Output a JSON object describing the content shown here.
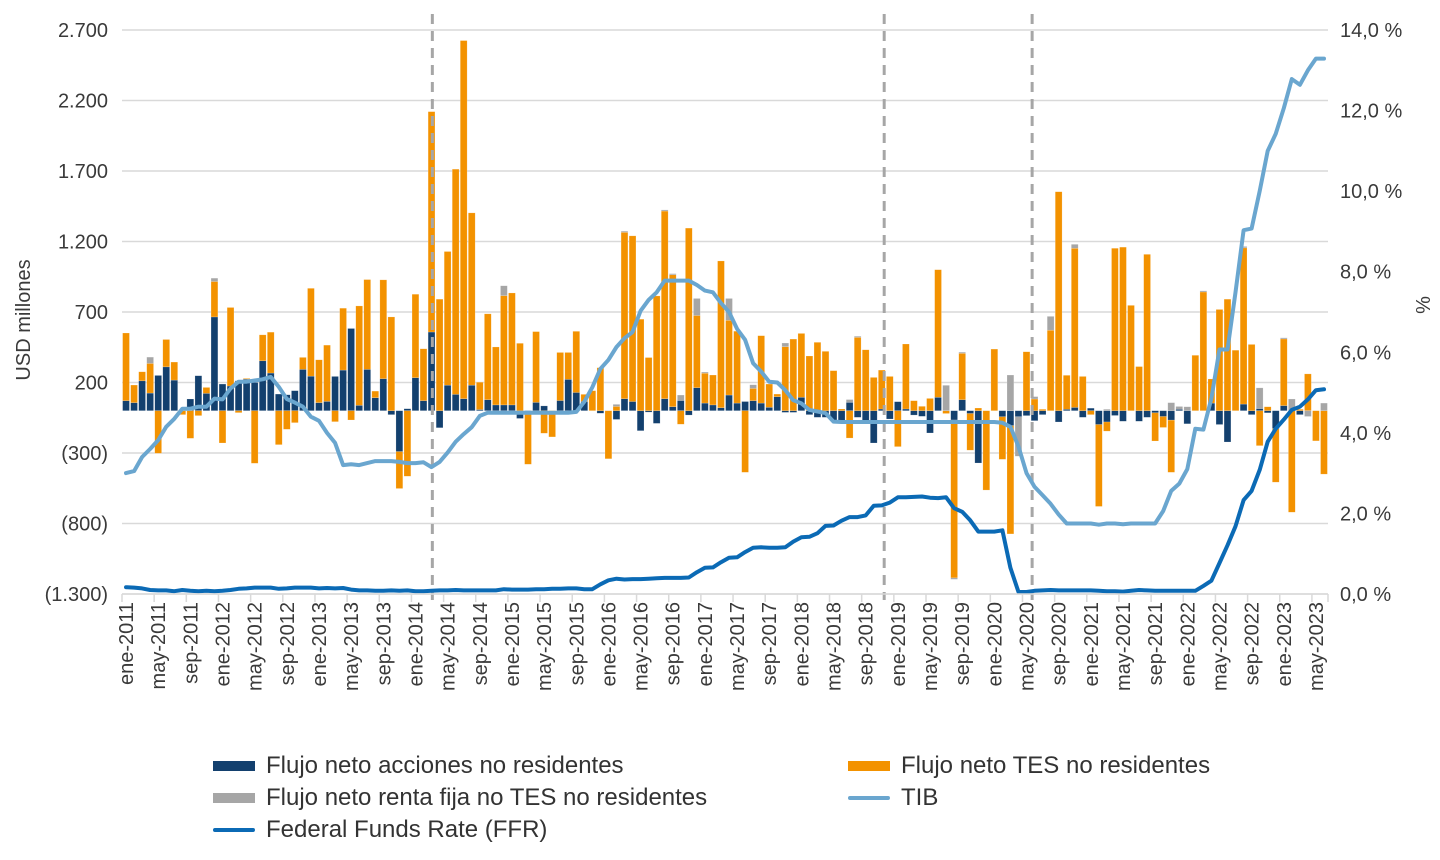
{
  "chart_data": {
    "type": "bar",
    "subtype": "stacked bar + line (dual axis)",
    "ylabel": "USD millones",
    "y2label": "%",
    "ylim": [
      -1300,
      2700
    ],
    "y2lim": [
      0,
      14
    ],
    "y_ticks": [
      2700,
      2200,
      1700,
      1200,
      700,
      200,
      -300,
      -800,
      -1300
    ],
    "y_tick_labels": [
      "2.700",
      "2.200",
      "1.700",
      "1.200",
      "700",
      "200",
      "(300)",
      "(800)",
      "(1.300)"
    ],
    "y2_ticks": [
      14,
      12,
      10,
      8,
      6,
      4,
      2,
      0
    ],
    "y2_tick_labels": [
      "14,0 %",
      "12,0 %",
      "10,0 %",
      "8,0 %",
      "6,0 %",
      "4,0 %",
      "2,0 %",
      "0,0 %"
    ],
    "grid": true,
    "x_first_month": "ene-2011",
    "x_tick_every_months": 4,
    "x_tick_labels": [
      "ene-2011",
      "may-2011",
      "sep-2011",
      "ene-2012",
      "may-2012",
      "sep-2012",
      "ene-2013",
      "may-2013",
      "sep-2013",
      "ene-2014",
      "may-2014",
      "sep-2014",
      "ene-2015",
      "may-2015",
      "sep-2015",
      "ene-2016",
      "may-2016",
      "sep-2016",
      "ene-2017",
      "may-2017",
      "sep-2017",
      "ene-2018",
      "may-2018",
      "sep-2018",
      "ene-2019",
      "may-2019",
      "sep-2019",
      "ene-2020",
      "may-2020",
      "sep-2020",
      "ene-2021",
      "may-2021",
      "sep-2021",
      "ene-2022",
      "may-2022",
      "sep-2022",
      "ene-2023",
      "may-2023"
    ],
    "vlines_month_index": [
      38.6,
      94.8,
      113.2
    ],
    "legend_position": "bottom",
    "series": [
      {
        "name": "Flujo neto acciones no residentes",
        "kind": "bar",
        "axis": "left",
        "color": "#13406e",
        "values": [
          71,
          57,
          212,
          125,
          250,
          311,
          217,
          0,
          83,
          248,
          123,
          665,
          189,
          175,
          212,
          224,
          200,
          354,
          267,
          118,
          113,
          142,
          293,
          245,
          57,
          66,
          243,
          288,
          583,
          38,
          293,
          92,
          227,
          -28,
          -290,
          14,
          234,
          71,
          558,
          -121,
          181,
          116,
          85,
          181,
          8,
          78,
          41,
          41,
          41,
          -55,
          -10,
          59,
          34,
          0,
          72,
          222,
          129,
          65,
          0,
          -18,
          0,
          -62,
          85,
          65,
          -142,
          -10,
          -90,
          85,
          28,
          72,
          -31,
          163,
          54,
          41,
          21,
          111,
          54,
          65,
          71,
          54,
          24,
          99,
          -12,
          -12,
          95,
          -28,
          -47,
          -47,
          -71,
          -71,
          59,
          -47,
          -71,
          -229,
          12,
          -59,
          64,
          12,
          -31,
          -40,
          -158,
          95,
          0,
          -66,
          78,
          -20,
          -371,
          0,
          0,
          -43,
          -106,
          -43,
          -35,
          -71,
          -28,
          0,
          -80,
          10,
          23,
          -47,
          18,
          -98,
          -80,
          -34,
          -75,
          0,
          -75,
          -47,
          -15,
          -41,
          -67,
          10,
          -93,
          0,
          0,
          54,
          -98,
          -222,
          0,
          47,
          -28,
          15,
          -15,
          -127,
          36,
          0,
          -28,
          0,
          0,
          0
        ]
      },
      {
        "name": "Flujo neto TES no residentes",
        "kind": "bar",
        "axis": "left",
        "color": "#f39200",
        "values": [
          480,
          125,
          64,
          210,
          -302,
          194,
          128,
          -28,
          -196,
          -35,
          42,
          251,
          -229,
          557,
          -14,
          5,
          -373,
          184,
          290,
          -241,
          -132,
          -85,
          85,
          623,
          304,
          399,
          -78,
          439,
          -66,
          705,
          637,
          47,
          701,
          665,
          -262,
          -465,
          592,
          368,
          1563,
          791,
          948,
          1597,
          2540,
          1222,
          194,
          609,
          411,
          775,
          794,
          478,
          -370,
          502,
          -160,
          -186,
          341,
          191,
          434,
          51,
          142,
          305,
          -341,
          30,
          1180,
          1175,
          649,
          377,
          814,
          1331,
          936,
          -96,
          1295,
          512,
          212,
          212,
          1041,
          530,
          510,
          -437,
          87,
          478,
          165,
          19,
          454,
          508,
          453,
          388,
          485,
          421,
          284,
          12,
          -194,
          520,
          432,
          236,
          276,
          243,
          -255,
          461,
          71,
          31,
          87,
          905,
          -20,
          -1120,
          329,
          -260,
          19,
          -563,
          437,
          -302,
          -768,
          0,
          418,
          83,
          10,
          571,
          1553,
          241,
          1129,
          243,
          -28,
          -581,
          -65,
          1152,
          1160,
          747,
          313,
          1109,
          -200,
          -78,
          -370,
          0,
          0,
          393,
          842,
          171,
          718,
          791,
          429,
          1108,
          470,
          -248,
          28,
          -380,
          473,
          -720,
          10,
          261,
          -214,
          -450
        ]
      },
      {
        "name": "Flujo neto renta fija no TES no residentes",
        "kind": "bar",
        "axis": "left",
        "color": "#a6a6a6",
        "values": [
          0,
          0,
          0,
          45,
          0,
          0,
          0,
          0,
          0,
          0,
          0,
          24,
          0,
          0,
          0,
          0,
          0,
          0,
          0,
          0,
          0,
          0,
          0,
          0,
          0,
          0,
          0,
          0,
          0,
          0,
          0,
          0,
          0,
          0,
          0,
          0,
          0,
          0,
          0,
          0,
          0,
          0,
          0,
          0,
          0,
          0,
          0,
          70,
          0,
          0,
          0,
          0,
          0,
          0,
          0,
          0,
          0,
          0,
          0,
          0,
          0,
          15,
          8,
          0,
          0,
          0,
          0,
          8,
          8,
          39,
          0,
          121,
          8,
          0,
          0,
          155,
          0,
          0,
          26,
          0,
          0,
          0,
          26,
          0,
          0,
          0,
          0,
          0,
          0,
          0,
          20,
          8,
          0,
          0,
          0,
          0,
          0,
          0,
          0,
          0,
          0,
          0,
          180,
          -10,
          8,
          0,
          0,
          0,
          0,
          0,
          253,
          -280,
          0,
          17,
          0,
          98,
          0,
          0,
          28,
          0,
          0,
          0,
          10,
          0,
          0,
          0,
          0,
          0,
          0,
          0,
          57,
          20,
          28,
          0,
          8,
          0,
          0,
          0,
          0,
          10,
          0,
          147,
          0,
          0,
          8,
          83,
          0,
          -41,
          0,
          54
        ]
      },
      {
        "name": "TIB",
        "kind": "line",
        "axis": "right",
        "color": "#6aa6cf",
        "values": [
          3.0,
          3.05,
          3.4,
          3.6,
          3.82,
          4.15,
          4.35,
          4.6,
          4.6,
          4.65,
          4.65,
          4.85,
          4.83,
          5.1,
          5.27,
          5.27,
          5.3,
          5.33,
          5.39,
          5.14,
          4.84,
          4.75,
          4.65,
          4.4,
          4.3,
          4.0,
          3.75,
          3.2,
          3.22,
          3.2,
          3.25,
          3.3,
          3.3,
          3.3,
          3.28,
          3.25,
          3.25,
          3.27,
          3.15,
          3.28,
          3.51,
          3.78,
          3.97,
          4.14,
          4.42,
          4.5,
          4.5,
          4.5,
          4.5,
          4.5,
          4.5,
          4.5,
          4.5,
          4.5,
          4.5,
          4.5,
          4.52,
          4.77,
          5.13,
          5.59,
          5.81,
          6.13,
          6.35,
          6.5,
          7.03,
          7.3,
          7.49,
          7.78,
          7.78,
          7.78,
          7.78,
          7.67,
          7.53,
          7.49,
          7.22,
          7.0,
          6.58,
          6.31,
          5.73,
          5.52,
          5.27,
          5.25,
          5.06,
          4.81,
          4.73,
          4.57,
          4.53,
          4.49,
          4.28,
          4.27,
          4.27,
          4.27,
          4.27,
          4.27,
          4.27,
          4.27,
          4.27,
          4.27,
          4.27,
          4.27,
          4.27,
          4.27,
          4.27,
          4.27,
          4.27,
          4.27,
          4.27,
          4.27,
          4.27,
          4.25,
          4.15,
          3.66,
          3.0,
          2.66,
          2.45,
          2.24,
          1.97,
          1.75,
          1.75,
          1.75,
          1.75,
          1.72,
          1.75,
          1.75,
          1.73,
          1.75,
          1.75,
          1.75,
          1.75,
          2.06,
          2.56,
          2.74,
          3.1,
          4.1,
          4.08,
          4.86,
          6.07,
          6.07,
          7.49,
          9.03,
          9.07,
          10.0,
          11.0,
          11.42,
          12.06,
          12.78,
          12.64,
          13.0,
          13.29,
          13.29
        ]
      },
      {
        "name": "Federal Funds Rate (FFR)",
        "kind": "line",
        "axis": "right",
        "color": "#0b6ab5",
        "values": [
          0.17,
          0.16,
          0.14,
          0.1,
          0.09,
          0.09,
          0.07,
          0.1,
          0.08,
          0.07,
          0.08,
          0.07,
          0.08,
          0.1,
          0.13,
          0.14,
          0.16,
          0.16,
          0.16,
          0.13,
          0.14,
          0.16,
          0.16,
          0.16,
          0.14,
          0.15,
          0.14,
          0.15,
          0.11,
          0.09,
          0.09,
          0.08,
          0.08,
          0.09,
          0.08,
          0.09,
          0.07,
          0.07,
          0.08,
          0.09,
          0.09,
          0.1,
          0.09,
          0.09,
          0.09,
          0.09,
          0.09,
          0.12,
          0.11,
          0.11,
          0.11,
          0.12,
          0.12,
          0.13,
          0.13,
          0.14,
          0.14,
          0.12,
          0.12,
          0.24,
          0.34,
          0.38,
          0.36,
          0.37,
          0.37,
          0.38,
          0.39,
          0.4,
          0.4,
          0.4,
          0.41,
          0.54,
          0.65,
          0.66,
          0.79,
          0.9,
          0.91,
          1.04,
          1.15,
          1.16,
          1.15,
          1.15,
          1.16,
          1.3,
          1.41,
          1.42,
          1.51,
          1.69,
          1.7,
          1.82,
          1.91,
          1.91,
          1.95,
          2.19,
          2.2,
          2.27,
          2.4,
          2.4,
          2.41,
          2.42,
          2.39,
          2.38,
          2.4,
          2.13,
          2.04,
          1.83,
          1.55,
          1.55,
          1.55,
          1.58,
          0.65,
          0.05,
          0.05,
          0.08,
          0.09,
          0.1,
          0.09,
          0.09,
          0.09,
          0.09,
          0.09,
          0.08,
          0.07,
          0.07,
          0.06,
          0.08,
          0.1,
          0.09,
          0.08,
          0.08,
          0.08,
          0.08,
          0.08,
          0.08,
          0.2,
          0.33,
          0.77,
          1.21,
          1.68,
          2.33,
          2.56,
          3.08,
          3.78,
          4.1,
          4.33,
          4.57,
          4.65,
          4.83,
          5.06,
          5.08
        ]
      }
    ]
  },
  "legend": {
    "acciones": "Flujo neto acciones no residentes",
    "tes": "Flujo neto TES no residentes",
    "renta_fija": "Flujo neto renta fija no TES no residentes",
    "tib": "TIB",
    "ffr": "Federal Funds Rate (FFR)"
  }
}
